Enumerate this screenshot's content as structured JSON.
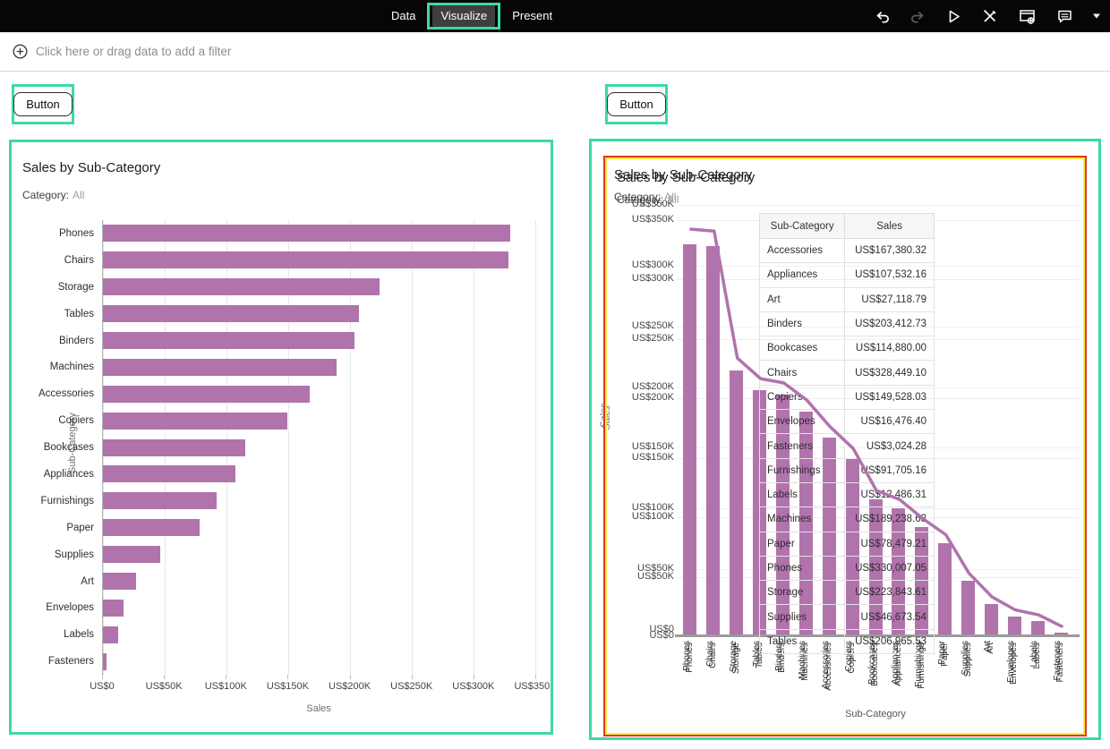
{
  "topbar": {
    "tabs": [
      {
        "label": "Data",
        "active": false
      },
      {
        "label": "Visualize",
        "active": true
      },
      {
        "label": "Present",
        "active": false
      }
    ],
    "icons": [
      "undo-icon",
      "redo-icon",
      "play-icon",
      "tools-icon",
      "data-settings-icon",
      "comments-icon",
      "caret-down-icon"
    ]
  },
  "filter_bar": {
    "icon": "add-filter-icon",
    "label": "Click here or drag data to add a filter"
  },
  "buttons": [
    {
      "label": "Button"
    },
    {
      "label": "Button"
    }
  ],
  "colors": {
    "bar": "#b173ac",
    "line": "#b173ac",
    "annotation_green": "#3dd9a6",
    "selection_red": "#e73322",
    "selection_yellow": "#eef03e"
  },
  "chart_data": [
    {
      "id": "left-horizontal-bar",
      "type": "bar",
      "orientation": "horizontal",
      "title": "Sales by Sub-Category",
      "subtitle_label": "Category:",
      "subtitle_value": "All",
      "xlabel": "Sales",
      "ylabel": "Sub-Category",
      "xlim": [
        0,
        350000
      ],
      "xticks": [
        "US$0",
        "US$50K",
        "US$100K",
        "US$150K",
        "US$200K",
        "US$250K",
        "US$300K",
        "US$350K"
      ],
      "grid": true,
      "categories": [
        "Phones",
        "Chairs",
        "Storage",
        "Tables",
        "Binders",
        "Machines",
        "Accessories",
        "Copiers",
        "Bookcases",
        "Appliances",
        "Furnishings",
        "Paper",
        "Supplies",
        "Art",
        "Envelopes",
        "Labels",
        "Fasteners"
      ],
      "values": [
        330007.05,
        328449.1,
        223843.61,
        206965.53,
        203412.73,
        189238.63,
        167380.32,
        149528.03,
        114880.0,
        107532.16,
        91705.16,
        78479.21,
        46673.54,
        27118.79,
        16476.4,
        12486.31,
        3024.28
      ]
    },
    {
      "id": "right-vertical-bar",
      "type": "bar",
      "orientation": "vertical",
      "title": "Sales by Sub-Category",
      "subtitle_label": "Category:",
      "subtitle_value": "All",
      "xlabel": "Sub-Category",
      "ylabel": "Sales",
      "ylim": [
        0,
        350000
      ],
      "yticks": [
        "US$350K",
        "US$300K",
        "US$250K",
        "US$200K",
        "US$150K",
        "US$100K",
        "US$50K",
        "US$0"
      ],
      "grid": true,
      "categories": [
        "Phones",
        "Chairs",
        "Storage",
        "Tables",
        "Binders",
        "Machines",
        "Accessories",
        "Copiers",
        "Bookcases",
        "Appliances",
        "Furnishings",
        "Paper",
        "Supplies",
        "Art",
        "Envelopes",
        "Labels",
        "Fasteners"
      ],
      "values": [
        330007.05,
        328449.1,
        223843.61,
        206965.53,
        203412.73,
        189238.63,
        167380.32,
        149528.03,
        114880.0,
        107532.16,
        91705.16,
        78479.21,
        46673.54,
        27118.79,
        16476.4,
        12486.31,
        3024.28
      ]
    },
    {
      "id": "right-overlapping-line",
      "type": "line",
      "title": "Sales by Sub-Category",
      "subtitle_label": "Category:",
      "subtitle_value": "All",
      "xlabel": "Sub-Category",
      "ylabel": "Sales",
      "ylim": [
        0,
        350000
      ],
      "yticks": [
        "US$350K",
        "US$300K",
        "US$250K",
        "US$200K",
        "US$150K",
        "US$100K",
        "US$50K",
        "US$0"
      ],
      "categories": [
        "Phones",
        "Chairs",
        "Storage",
        "Tables",
        "Binders",
        "Machines",
        "Accessories",
        "Copiers",
        "Bookcases",
        "Appliances",
        "Furnishings",
        "Paper",
        "Supplies",
        "Art",
        "Envelopes",
        "Labels",
        "Fasteners"
      ],
      "values": [
        330007.05,
        328449.1,
        223843.61,
        206965.53,
        203412.73,
        189238.63,
        167380.32,
        149528.03,
        114880.0,
        107532.16,
        91705.16,
        78479.21,
        46673.54,
        27118.79,
        16476.4,
        12486.31,
        3024.28
      ]
    },
    {
      "id": "right-overlay-table",
      "type": "table",
      "columns": [
        "Sub-Category",
        "Sales"
      ],
      "rows": [
        [
          "Accessories",
          "US$167,380.32"
        ],
        [
          "Appliances",
          "US$107,532.16"
        ],
        [
          "Art",
          "US$27,118.79"
        ],
        [
          "Binders",
          "US$203,412.73"
        ],
        [
          "Bookcases",
          "US$114,880.00"
        ],
        [
          "Chairs",
          "US$328,449.10"
        ],
        [
          "Copiers",
          "US$149,528.03"
        ],
        [
          "Envelopes",
          "US$16,476.40"
        ],
        [
          "Fasteners",
          "US$3,024.28"
        ],
        [
          "Furnishings",
          "US$91,705.16"
        ],
        [
          "Labels",
          "US$12,486.31"
        ],
        [
          "Machines",
          "US$189,238.63"
        ],
        [
          "Paper",
          "US$78,479.21"
        ],
        [
          "Phones",
          "US$330,007.05"
        ],
        [
          "Storage",
          "US$223,843.61"
        ],
        [
          "Supplies",
          "US$46,673.54"
        ],
        [
          "Tables",
          "US$206,965.53"
        ]
      ]
    }
  ]
}
